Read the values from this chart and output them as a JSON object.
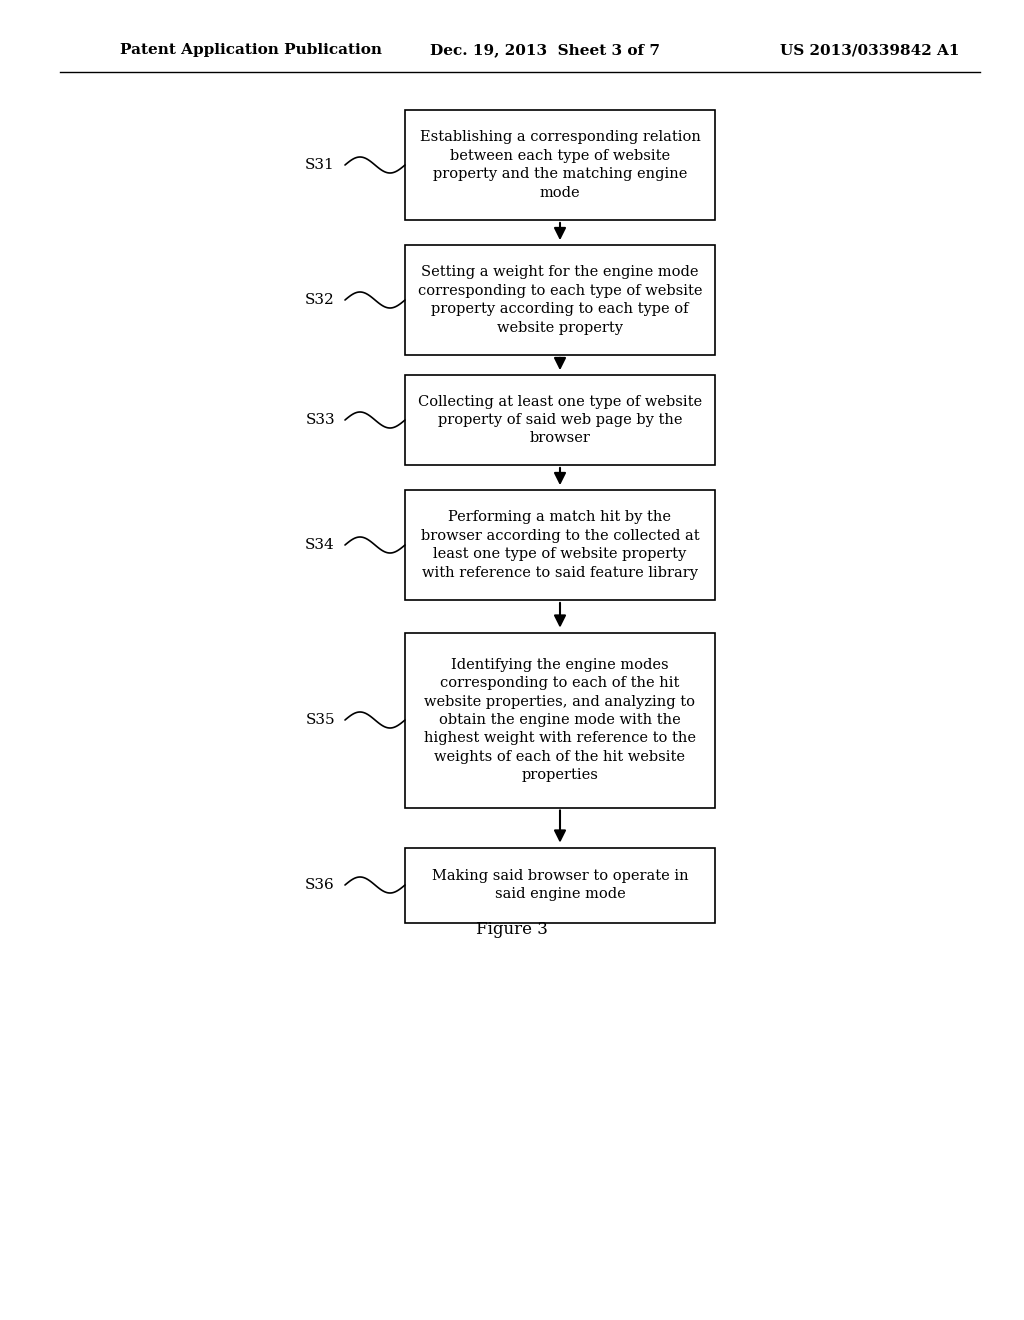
{
  "header_left": "Patent Application Publication",
  "header_mid": "Dec. 19, 2013  Sheet 3 of 7",
  "header_right": "US 2013/0339842 A1",
  "figure_label": "Figure 3",
  "background_color": "#ffffff",
  "box_edge_color": "#000000",
  "box_fill_color": "#ffffff",
  "arrow_color": "#000000",
  "text_color": "#000000",
  "steps": [
    {
      "label": "S31",
      "text": "Establishing a corresponding relation\nbetween each type of website\nproperty and the matching engine\nmode"
    },
    {
      "label": "S32",
      "text": "Setting a weight for the engine mode\ncorresponding to each type of website\nproperty according to each type of\nwebsite property"
    },
    {
      "label": "S33",
      "text": "Collecting at least one type of website\nproperty of said web page by the\nbrowser"
    },
    {
      "label": "S34",
      "text": "Performing a match hit by the\nbrowser according to the collected at\nleast one type of website property\nwith reference to said feature library"
    },
    {
      "label": "S35",
      "text": "Identifying the engine modes\ncorresponding to each of the hit\nwebsite properties, and analyzing to\nobtain the engine mode with the\nhighest weight with reference to the\nweights of each of the hit website\nproperties"
    },
    {
      "label": "S36",
      "text": "Making said browser to operate in\nsaid engine mode"
    }
  ]
}
